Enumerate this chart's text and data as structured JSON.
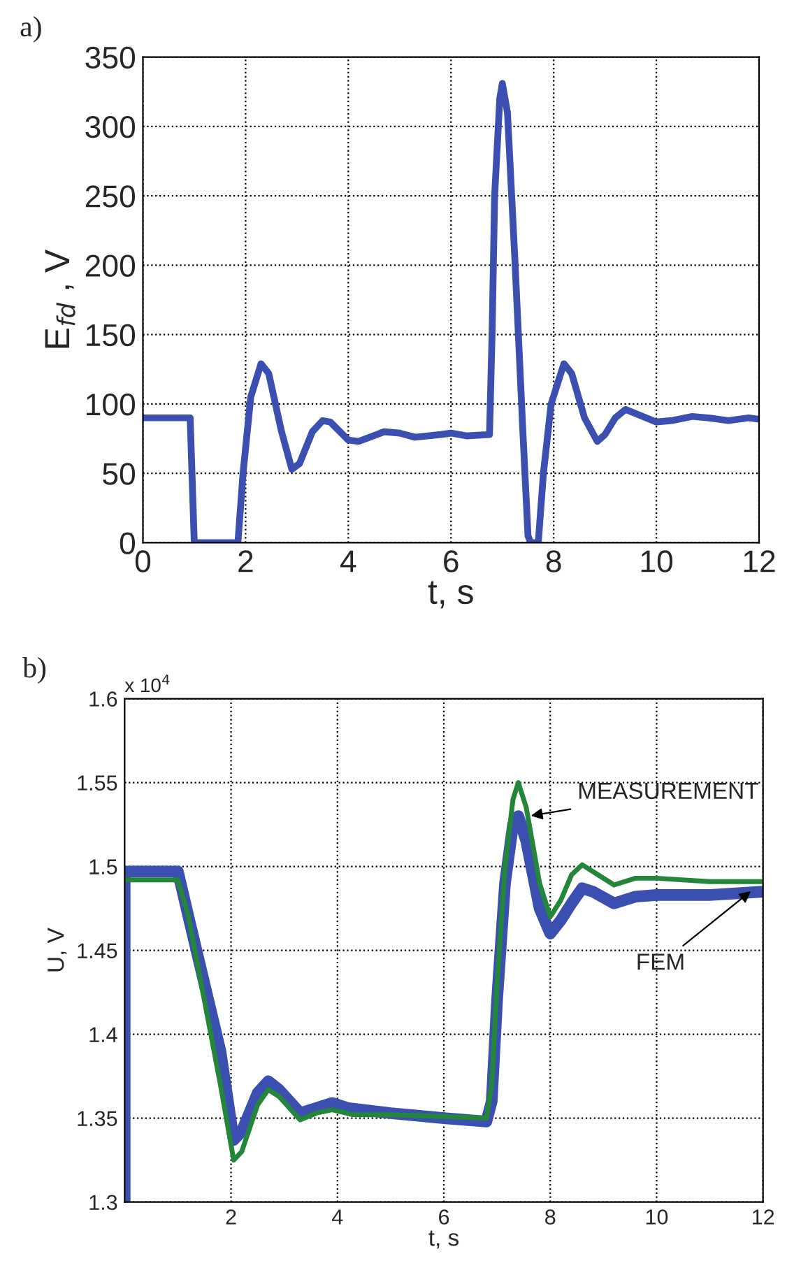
{
  "chart_data": [
    {
      "type": "line",
      "title": "a)",
      "xlabel": "t, s",
      "ylabel": "E$_{fd}$ , V",
      "xlim": [
        0,
        12
      ],
      "xticks": [
        0,
        2,
        4,
        6,
        8,
        10,
        12
      ],
      "ylim": [
        0,
        350
      ],
      "yticks": [
        0,
        50,
        100,
        150,
        200,
        250,
        300,
        350
      ],
      "grid": true,
      "series": [
        {
          "color": "#3a4fb0",
          "x": [
            0,
            0.92,
            1.0,
            1.85,
            1.95,
            2.1,
            2.3,
            2.45,
            2.7,
            2.9,
            3.05,
            3.3,
            3.5,
            3.65,
            4.0,
            4.2,
            4.7,
            5.0,
            5.3,
            5.8,
            6.0,
            6.3,
            6.75,
            6.8,
            6.85,
            6.95,
            7.0,
            7.1,
            7.25,
            7.4,
            7.5,
            7.55,
            7.7,
            7.8,
            7.95,
            8.2,
            8.35,
            8.6,
            8.85,
            9.0,
            9.2,
            9.4,
            9.6,
            10.0,
            10.3,
            10.7,
            11.0,
            11.4,
            11.8,
            12
          ],
          "values": [
            90,
            90,
            0,
            0,
            50,
            105,
            129,
            122,
            80,
            53,
            57,
            80,
            88,
            87,
            74,
            73,
            80,
            79,
            76,
            78,
            79,
            77,
            78,
            150,
            250,
            320,
            331,
            310,
            200,
            80,
            5,
            0,
            0,
            50,
            100,
            129,
            122,
            90,
            73,
            78,
            90,
            96,
            93,
            87,
            88,
            91,
            90,
            88,
            90,
            89
          ]
        }
      ]
    },
    {
      "type": "line",
      "title": "b)",
      "xlabel": "t, s",
      "ylabel": "U, V",
      "xlim": [
        0,
        12
      ],
      "xticks": [
        2,
        4,
        6,
        8,
        10,
        12
      ],
      "ylim": [
        1.3,
        1.6
      ],
      "yticks": [
        1.3,
        1.35,
        1.4,
        1.45,
        1.5,
        1.55,
        1.6
      ],
      "grid": true,
      "annotations": [
        "x 10$^{4}$",
        {
          "text": "MEASUREMENT",
          "x": 7.6,
          "y": 1.53
        },
        {
          "text": "FEM",
          "x": 11.8,
          "y": 1.486
        }
      ],
      "series": [
        {
          "color": "#3a4fb0",
          "x": [
            0,
            0,
            1.0,
            1.2,
            1.5,
            1.8,
            2.05,
            2.2,
            2.5,
            2.7,
            2.9,
            3.3,
            3.6,
            3.9,
            4.2,
            5.0,
            6.0,
            6.8,
            6.9,
            7.0,
            7.15,
            7.3,
            7.4,
            7.55,
            7.8,
            8.0,
            8.2,
            8.4,
            8.6,
            8.8,
            9.2,
            9.6,
            10,
            11,
            12
          ],
          "values": [
            1.3,
            1.497,
            1.497,
            1.47,
            1.43,
            1.39,
            1.337,
            1.342,
            1.365,
            1.372,
            1.367,
            1.353,
            1.356,
            1.359,
            1.356,
            1.353,
            1.35,
            1.348,
            1.36,
            1.42,
            1.49,
            1.525,
            1.53,
            1.515,
            1.475,
            1.46,
            1.468,
            1.478,
            1.487,
            1.485,
            1.478,
            1.482,
            1.483,
            1.483,
            1.485
          ]
        },
        {
          "color": "#23863a",
          "x": [
            0,
            1.0,
            1.2,
            1.5,
            1.8,
            2.05,
            2.2,
            2.5,
            2.7,
            2.9,
            3.3,
            3.6,
            3.9,
            4.3,
            5.0,
            6.0,
            6.8,
            6.9,
            7.0,
            7.15,
            7.3,
            7.4,
            7.55,
            7.8,
            8.0,
            8.2,
            8.4,
            8.6,
            8.8,
            9.2,
            9.6,
            10,
            11,
            12
          ],
          "values": [
            1.492,
            1.492,
            1.47,
            1.42,
            1.37,
            1.325,
            1.33,
            1.358,
            1.367,
            1.363,
            1.349,
            1.353,
            1.355,
            1.352,
            1.352,
            1.351,
            1.35,
            1.37,
            1.43,
            1.5,
            1.54,
            1.55,
            1.535,
            1.49,
            1.47,
            1.48,
            1.495,
            1.501,
            1.497,
            1.489,
            1.493,
            1.493,
            1.491,
            1.491
          ]
        }
      ]
    }
  ]
}
